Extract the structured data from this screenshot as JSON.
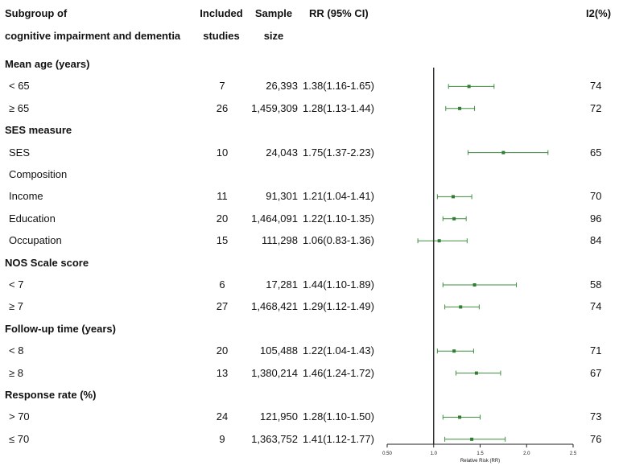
{
  "chart_data": {
    "type": "forest",
    "columns": {
      "subgroup_l1": "Subgroup of",
      "subgroup_l2": "cognitive impairment and dementia",
      "studies_l1": "Included",
      "studies_l2": "studies",
      "sample_l1": "Sample",
      "sample_l2": "size",
      "rr": "RR (95% CI)",
      "i2": "I2(%)"
    },
    "xlabel": "Relative Risk (RR)",
    "xlim": [
      0.5,
      2.5
    ],
    "reference_line": 1.0,
    "ticks": [
      {
        "value": 0.5,
        "label": "0.50"
      },
      {
        "value": 1.0,
        "label": "1.0"
      },
      {
        "value": 1.5,
        "label": "1.5"
      },
      {
        "value": 2.0,
        "label": "2.0"
      },
      {
        "value": 2.5,
        "label": "2.5"
      }
    ],
    "rows": [
      {
        "kind": "section",
        "label": "Mean age (years)"
      },
      {
        "kind": "item",
        "label": "< 65",
        "studies": "7",
        "sample": "26,393",
        "rr_text": "1.38(1.16-1.65)",
        "rr": 1.38,
        "lo": 1.16,
        "hi": 1.65,
        "i2": "74"
      },
      {
        "kind": "item",
        "label": "≥ 65",
        "studies": "26",
        "sample": "1,459,309",
        "rr_text": "1.28(1.13-1.44)",
        "rr": 1.28,
        "lo": 1.13,
        "hi": 1.44,
        "i2": "72"
      },
      {
        "kind": "section",
        "label": "SES measure"
      },
      {
        "kind": "item",
        "label": "SES",
        "studies": "10",
        "sample": "24,043",
        "rr_text": "1.75(1.37-2.23)",
        "rr": 1.75,
        "lo": 1.37,
        "hi": 2.23,
        "i2": "65"
      },
      {
        "kind": "subsection",
        "label": "Composition"
      },
      {
        "kind": "item",
        "label": "Income",
        "studies": "11",
        "sample": "91,301",
        "rr_text": "1.21(1.04-1.41)",
        "rr": 1.21,
        "lo": 1.04,
        "hi": 1.41,
        "i2": "70"
      },
      {
        "kind": "item",
        "label": "Education",
        "studies": "20",
        "sample": "1,464,091",
        "rr_text": "1.22(1.10-1.35)",
        "rr": 1.22,
        "lo": 1.1,
        "hi": 1.35,
        "i2": "96"
      },
      {
        "kind": "item",
        "label": "Occupation",
        "studies": "15",
        "sample": "111,298",
        "rr_text": "1.06(0.83-1.36)",
        "rr": 1.06,
        "lo": 0.83,
        "hi": 1.36,
        "i2": "84"
      },
      {
        "kind": "section",
        "label": "NOS Scale score"
      },
      {
        "kind": "item",
        "label": "< 7",
        "studies": "6",
        "sample": "17,281",
        "rr_text": "1.44(1.10-1.89)",
        "rr": 1.44,
        "lo": 1.1,
        "hi": 1.89,
        "i2": "58"
      },
      {
        "kind": "item",
        "label": "≥ 7",
        "studies": "27",
        "sample": "1,468,421",
        "rr_text": "1.29(1.12-1.49)",
        "rr": 1.29,
        "lo": 1.12,
        "hi": 1.49,
        "i2": "74"
      },
      {
        "kind": "section",
        "label": "Follow-up time (years)"
      },
      {
        "kind": "item",
        "label": "< 8",
        "studies": "20",
        "sample": "105,488",
        "rr_text": "1.22(1.04-1.43)",
        "rr": 1.22,
        "lo": 1.04,
        "hi": 1.43,
        "i2": "71"
      },
      {
        "kind": "item",
        "label": "≥ 8",
        "studies": "13",
        "sample": "1,380,214",
        "rr_text": "1.46(1.24-1.72)",
        "rr": 1.46,
        "lo": 1.24,
        "hi": 1.72,
        "i2": "67"
      },
      {
        "kind": "section",
        "label": "Response rate (%)"
      },
      {
        "kind": "item",
        "label": "> 70",
        "studies": "24",
        "sample": "121,950",
        "rr_text": "1.28(1.10-1.50)",
        "rr": 1.28,
        "lo": 1.1,
        "hi": 1.5,
        "i2": "73"
      },
      {
        "kind": "item",
        "label": "≤ 70",
        "studies": "9",
        "sample": "1,363,752",
        "rr_text": "1.41(1.12-1.77)",
        "rr": 1.41,
        "lo": 1.12,
        "hi": 1.77,
        "i2": "76"
      }
    ],
    "colors": {
      "marker": "#2e7d32",
      "ci_line": "#3f8f3f",
      "axis": "#222222",
      "text": "#111111"
    }
  }
}
